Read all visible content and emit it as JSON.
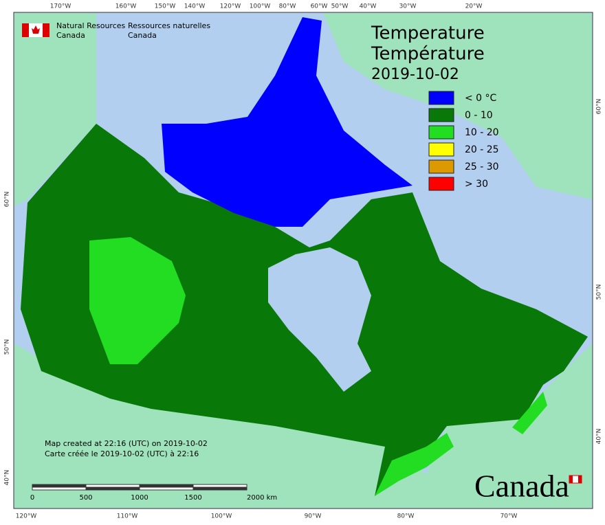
{
  "header": {
    "agency_en": [
      "Natural Resources",
      "Canada"
    ],
    "agency_fr": [
      "Ressources naturelles",
      "Canada"
    ]
  },
  "title": [
    "Temperature",
    "Température"
  ],
  "date": "2019-10-02",
  "legend": [
    {
      "label": "< 0 °C",
      "color": "#0000ff"
    },
    {
      "label": "0 - 10",
      "color": "#087808"
    },
    {
      "label": "10 - 20",
      "color": "#22dd22"
    },
    {
      "label": "20 - 25",
      "color": "#ffff00"
    },
    {
      "label": "25 - 30",
      "color": "#dd9900"
    },
    {
      "label": "> 30",
      "color": "#ff0000"
    }
  ],
  "credits": [
    "Map created at 22:16 (UTC) on 2019-10-02",
    "Carte créée le 2019-10-02 (UTC) à 22:16"
  ],
  "scale_bar": [
    "0",
    "500",
    "1000",
    "1500",
    "2000 km"
  ],
  "graticule": {
    "top": [
      "170°W",
      "160°W",
      "150°W",
      "140°W",
      "120°W",
      "100°W",
      "80°W",
      "60°W",
      "50°W",
      "40°W",
      "30°W",
      "20°W"
    ],
    "bottom": [
      "120°W",
      "110°W",
      "100°W",
      "90°W",
      "80°W",
      "70°W"
    ],
    "left": [
      "60°N",
      "50°N",
      "40°N"
    ],
    "right": [
      "60°N",
      "50°N",
      "40°N"
    ]
  },
  "wordmark": "Canada"
}
